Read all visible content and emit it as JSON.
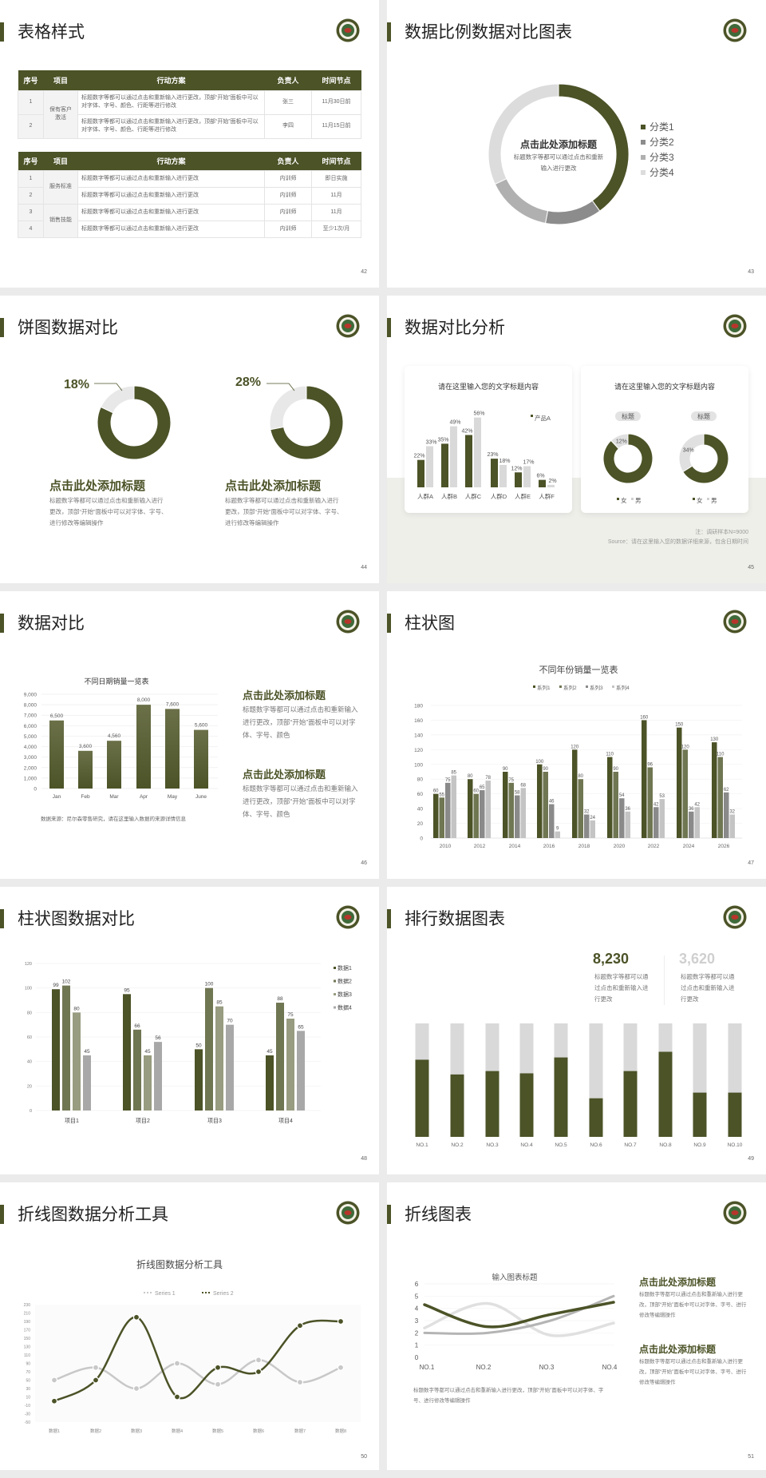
{
  "theme": {
    "accent": "#4b5327",
    "background": "#ebebeb",
    "logo_icon": "emblem-icon"
  },
  "s42": {
    "title": "表格样式",
    "page": "42",
    "headers": [
      "序号",
      "项目",
      "行动方案",
      "负责人",
      "时间节点"
    ],
    "table1": [
      {
        "group": "保有客户激活",
        "rows": [
          {
            "no": "1",
            "plan": "标题数字等都可以通过点击和重新输入进行更改，顶部“开始”面板中可以对字体、字号、颜色、行距等进行修改",
            "owner": "张三",
            "time": "11月30日前"
          },
          {
            "no": "2",
            "plan": "标题数字等都可以通过点击和重新输入进行更改，顶部“开始”面板中可以对字体、字号、颜色、行距等进行修改",
            "owner": "李四",
            "time": "11月15日前"
          }
        ]
      }
    ],
    "table2": [
      {
        "group": "服务标准",
        "rows": [
          {
            "no": "1",
            "plan": "标题数字等都可以通过点击和重新输入进行更改",
            "owner": "内训师",
            "time": "即日实施"
          },
          {
            "no": "2",
            "plan": "标题数字等都可以通过点击和重新输入进行更改",
            "owner": "内训师",
            "time": "11月"
          }
        ]
      },
      {
        "group": "销售技能",
        "rows": [
          {
            "no": "3",
            "plan": "标题数字等都可以通过点击和重新输入进行更改",
            "owner": "内训师",
            "time": "11月"
          },
          {
            "no": "4",
            "plan": "标题数字等都可以通过点击和重新输入进行更改",
            "owner": "内训师",
            "time": "至少1次/月"
          }
        ]
      }
    ]
  },
  "s43": {
    "title": "数据比例数据对比图表",
    "page": "43",
    "center_title": "点击此处添加标题",
    "center_body": "标题数字等都可以通过点击和重新输入进行更改"
  },
  "s44": {
    "title": "饼图数据对比",
    "page": "44",
    "items": [
      {
        "percent": "18%",
        "heading": "点击此处添加标题",
        "body": "标题数字等都可以通过点击和重新输入进行更改，顶部“开始”面板中可以对字体、字号、进行修改等编辑操作"
      },
      {
        "percent": "28%",
        "heading": "点击此处添加标题",
        "body": "标题数字等都可以通过点击和重新输入进行更改，顶部“开始”面板中可以对字体、字号、进行修改等编辑操作"
      }
    ]
  },
  "s45": {
    "title": "数据对比分析",
    "page": "45",
    "note": "注：调研样本N=9000",
    "source": "Source：请在这里输入您的数据详细来源，包含日期时间"
  },
  "s46": {
    "title": "数据对比",
    "page": "46",
    "source": "数据来源：尼尔森零售研究，请在这里输入数据的来源详情信息",
    "blocks": [
      {
        "heading": "点击此处添加标题",
        "body": "标题数字等都可以通过点击和重新输入进行更改，顶部“开始”面板中可以对字体、字号、颜色"
      },
      {
        "heading": "点击此处添加标题",
        "body": "标题数字等都可以通过点击和重新输入进行更改，顶部“开始”面板中可以对字体、字号、颜色"
      }
    ]
  },
  "s47": {
    "title": "柱状图",
    "page": "47"
  },
  "s48": {
    "title": "柱状图数据对比",
    "page": "48"
  },
  "s49": {
    "title": "排行数据图表",
    "page": "49",
    "stats": [
      {
        "value": "8,230",
        "body": "标题数字等都可以通过点击和重新输入进行更改",
        "color": "#4b5327"
      },
      {
        "value": "3,620",
        "body": "标题数字等都可以通过点击和重新输入进行更改",
        "color": "#cfcfcf"
      }
    ]
  },
  "s50": {
    "title": "折线图数据分析工具",
    "page": "50"
  },
  "s51": {
    "title": "折线图表",
    "page": "51",
    "caption": "标题数字等都可以通过点击和重新输入进行更改，顶部“开始”面板中可以对字体、字号、进行修改等编辑操作",
    "blocks": [
      {
        "heading": "点击此处添加标题",
        "body": "标题数字等都可以通过点击和重新输入进行更改，顶部“开始”面板中可以对字体、字号、进行修改等编辑操作"
      },
      {
        "heading": "点击此处添加标题",
        "body": "标题数字等都可以通过点击和重新输入进行更改，顶部“开始”面板中可以对字体、字号、进行修改等编辑操作"
      }
    ]
  },
  "chart_data": [
    {
      "id": "s43",
      "type": "pie",
      "donut": true,
      "categories": [
        "分类1",
        "分类2",
        "分类3",
        "分类4"
      ],
      "values": [
        40,
        13,
        15,
        32
      ],
      "colors": [
        "#4b5327",
        "#8c8c8c",
        "#b0b0b0",
        "#dcdcdc"
      ],
      "legend": "right"
    },
    {
      "id": "s44",
      "type": "pie",
      "donut": true,
      "charts": [
        {
          "values": [
            82,
            18
          ]
        },
        {
          "values": [
            72,
            28
          ]
        }
      ],
      "colors": [
        "#4b5327",
        "#e8e8e8"
      ]
    },
    {
      "id": "s45a",
      "type": "bar",
      "title": "请在这里输入您的文字标题内容",
      "categories": [
        "人群A",
        "人群B",
        "人群C",
        "人群D",
        "人群E",
        "人群F"
      ],
      "series": [
        {
          "name": "产品A",
          "values": [
            22,
            35,
            42,
            23,
            12,
            6
          ]
        },
        {
          "values": [
            33,
            49,
            56,
            18,
            17,
            2
          ]
        }
      ],
      "unit": "%",
      "legend": "top-right"
    },
    {
      "id": "s45b",
      "type": "pie",
      "donut": true,
      "title": "请在这里输入您的文字标题内容",
      "categories": [
        "女",
        "男"
      ],
      "charts": [
        {
          "label": "标题",
          "values": [
            88,
            12
          ],
          "shown_label": "12%"
        },
        {
          "label": "标题",
          "values": [
            66,
            34
          ],
          "shown_label": "34%"
        }
      ],
      "legend": "bottom"
    },
    {
      "id": "s46",
      "type": "bar",
      "title": "不同日期销量一览表",
      "categories": [
        "Jan",
        "Feb",
        "Mar",
        "Apr",
        "May",
        "June"
      ],
      "values": [
        6500,
        3600,
        4560,
        8000,
        7600,
        5600
      ],
      "labels": [
        "6,500",
        "3,600",
        "4,560",
        "8,000",
        "7,600",
        "5,600"
      ],
      "ylim": [
        0,
        9000
      ],
      "yticks": [
        "0",
        "1,000",
        "2,000",
        "3,000",
        "4,000",
        "5,000",
        "6,000",
        "7,000",
        "8,000",
        "9,000"
      ],
      "grid": true
    },
    {
      "id": "s47",
      "type": "bar",
      "title": "不同年份销量一览表",
      "categories": [
        "2010",
        "2012",
        "2014",
        "2016",
        "2018",
        "2020",
        "2022",
        "2024",
        "2026"
      ],
      "series": [
        {
          "name": "系列1",
          "values": [
            60,
            80,
            90,
            100,
            120,
            110,
            160,
            150,
            130
          ]
        },
        {
          "name": "系列2",
          "values": [
            55,
            60,
            75,
            90,
            80,
            90,
            96,
            120,
            110
          ]
        },
        {
          "name": "系列3",
          "values": [
            75,
            65,
            58,
            46,
            32,
            54,
            42,
            36,
            62
          ]
        },
        {
          "name": "系列4",
          "values": [
            85,
            78,
            68,
            9,
            24,
            36,
            53,
            42,
            32
          ]
        }
      ],
      "colors": [
        "#4b5327",
        "#6f7652",
        "#8a8a8a",
        "#c4c4c4"
      ],
      "ylim": [
        0,
        180
      ],
      "yticks": [
        0,
        20,
        40,
        60,
        80,
        100,
        120,
        140,
        160,
        180
      ],
      "legend": "top",
      "grid": true
    },
    {
      "id": "s48",
      "type": "bar",
      "categories": [
        "项目1",
        "项目2",
        "项目3",
        "项目4"
      ],
      "series": [
        {
          "name": "数据1",
          "values": [
            99,
            95,
            50,
            45
          ]
        },
        {
          "name": "数据2",
          "values": [
            102,
            66,
            100,
            88
          ]
        },
        {
          "name": "数据3",
          "values": [
            80,
            45,
            85,
            75
          ]
        },
        {
          "name": "数据4",
          "values": [
            45,
            56,
            70,
            65
          ]
        }
      ],
      "colors": [
        "#4b5327",
        "#6f7652",
        "#989c80",
        "#a8a8a8"
      ],
      "ylim": [
        0,
        120
      ],
      "yticks": [
        0,
        20,
        40,
        60,
        80,
        100,
        120
      ],
      "legend": "right",
      "grid": true
    },
    {
      "id": "s49",
      "type": "bar",
      "stacked_percent": true,
      "categories": [
        "NO.1",
        "NO.2",
        "NO.3",
        "NO.4",
        "NO.5",
        "NO.6",
        "NO.7",
        "NO.8",
        "NO.9",
        "NO.10"
      ],
      "values": [
        0.68,
        0.55,
        0.58,
        0.56,
        0.7,
        0.34,
        0.58,
        0.75,
        0.39,
        0.39
      ],
      "colors": [
        "#4b5327",
        "#d9d9d9"
      ]
    },
    {
      "id": "s50",
      "type": "line",
      "smooth": true,
      "title": "折线图数据分析工具",
      "categories": [
        "数据1",
        "数据2",
        "数据3",
        "数据4",
        "数据5",
        "数据6",
        "数据7",
        "数据8"
      ],
      "series": [
        {
          "name": "Series 1",
          "values": [
            50,
            80,
            30,
            90,
            40,
            98,
            45,
            80
          ],
          "color": "#c8c8c8"
        },
        {
          "name": "Series 2",
          "values": [
            0,
            50,
            200,
            10,
            80,
            70,
            180,
            190
          ],
          "color": "#4b5327"
        }
      ],
      "ylim": [
        -50,
        230
      ],
      "yticks": [
        -50,
        -30,
        -10,
        10,
        30,
        50,
        70,
        90,
        110,
        130,
        150,
        170,
        190,
        210,
        230
      ],
      "legend": "top"
    },
    {
      "id": "s51",
      "type": "line",
      "smooth": true,
      "title": "输入图表标题",
      "categories": [
        "NO.1",
        "NO.2",
        "NO.3",
        "NO.4"
      ],
      "series": [
        {
          "values": [
            4.3,
            2.5,
            3.5,
            4.5
          ],
          "color": "#4b5327"
        },
        {
          "values": [
            2.4,
            4.4,
            1.8,
            2.8
          ],
          "color": "#e0e0e0"
        },
        {
          "values": [
            2.0,
            2.0,
            3.0,
            5.0
          ],
          "color": "#b4b4b4"
        }
      ],
      "ylim": [
        0,
        6
      ],
      "yticks": [
        0,
        1,
        2,
        3,
        4,
        5,
        6
      ],
      "grid": true
    }
  ]
}
